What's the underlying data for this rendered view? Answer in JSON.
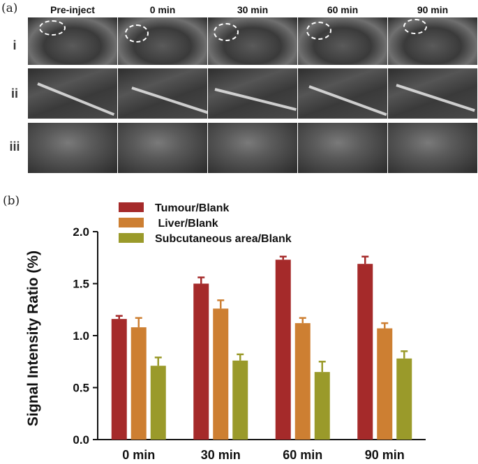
{
  "panel_a": {
    "label": "(a)",
    "columns": [
      "Pre-inject",
      "0 min",
      "30 min",
      "60 min",
      "90 min"
    ],
    "rows": [
      "i",
      "ii",
      "iii"
    ]
  },
  "panel_b": {
    "label": "(b)"
  },
  "chart_data": {
    "type": "bar",
    "title": "",
    "xlabel": "",
    "ylabel": "Signal Intensity Ratio (%)",
    "ylim": [
      0,
      2.0
    ],
    "yticks": [
      "0.0",
      "0.5",
      "1.0",
      "1.5",
      "2.0"
    ],
    "categories": [
      "0 min",
      "30 min",
      "60 min",
      "90 min"
    ],
    "series": [
      {
        "name": "Tumour/Blank",
        "color": "#a52a2a",
        "values": [
          1.16,
          1.5,
          1.73,
          1.69
        ],
        "errors": [
          0.03,
          0.06,
          0.03,
          0.07
        ]
      },
      {
        "name": " Liver/Blank",
        "color": "#cd7f32",
        "values": [
          1.08,
          1.26,
          1.12,
          1.07
        ],
        "errors": [
          0.09,
          0.08,
          0.05,
          0.05
        ]
      },
      {
        "name": "Subcutaneous area/Blank",
        "color": "#9a9a2a",
        "values": [
          0.71,
          0.76,
          0.65,
          0.78
        ],
        "errors": [
          0.08,
          0.06,
          0.1,
          0.07
        ]
      }
    ],
    "legend_position": "top-left",
    "grid": false
  }
}
